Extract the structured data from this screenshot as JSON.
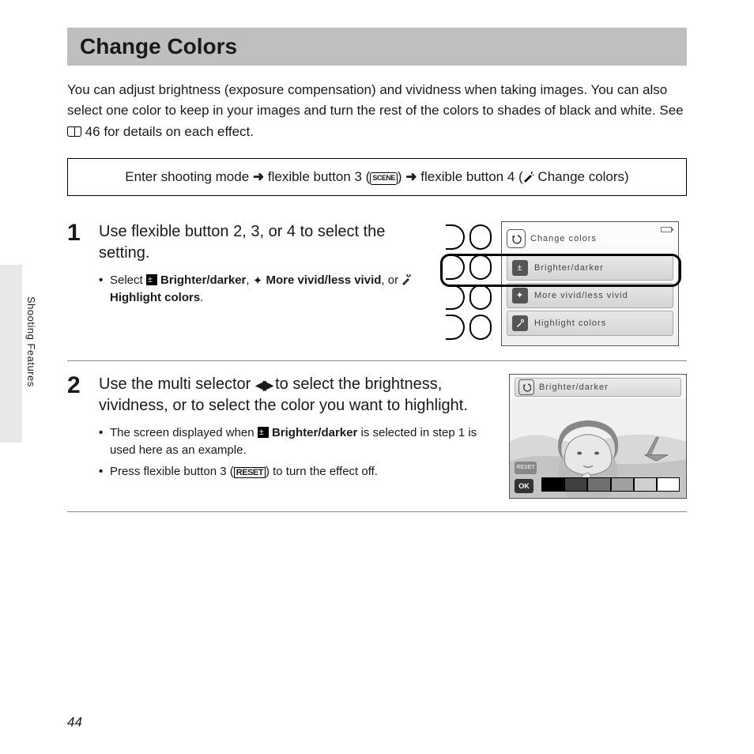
{
  "page_number": "44",
  "side_label": "Shooting Features",
  "title": "Change Colors",
  "intro_before_ref": "You can adjust brightness (exposure compensation) and vividness when taking images. You can also select one color to keep in your images and turn the rest of the colors to shades of black and white. See ",
  "intro_ref": " 46",
  "intro_after_ref": " for details on each effect.",
  "breadcrumb": {
    "p1": "Enter shooting mode ",
    "p2": " flexible button 3 (",
    "scene_label": "SCENE",
    "p3": ") ",
    "p4": " flexible button 4 (",
    "p5": " Change colors)"
  },
  "step1": {
    "num": "1",
    "title": "Use flexible button 2, 3, or 4 to select the setting.",
    "bullet_lead": "Select ",
    "opt1": " Brighter/darker",
    "sep1": ", ",
    "opt2": " More vivid/less vivid",
    "sep2": ", or ",
    "opt3": " Highlight colors",
    "tail": "."
  },
  "step2": {
    "num": "2",
    "title_a": "Use the multi selector ",
    "title_b": " to select the brightness, vividness, or to select the color you want to highlight.",
    "bullet1_a": "The screen displayed when ",
    "bullet1_b": " Brighter/darker",
    "bullet1_c": " is selected in step 1 is used here as an example.",
    "bullet2_a": "Press flexible button 3 (",
    "bullet2_reset": "RESET",
    "bullet2_b": ") to turn the effect off."
  },
  "screen1": {
    "header": "Change colors",
    "row1": "Brighter/darker",
    "row2": "More vivid/less vivid",
    "row3": "Highlight colors"
  },
  "screen2": {
    "header": "Brighter/darker",
    "ok": "OK",
    "reset": "RESET",
    "slider_colors": [
      "#000000",
      "#404040",
      "#707070",
      "#a0a0a0",
      "#d0d0d0",
      "#ffffff"
    ]
  },
  "colors": {
    "title_bg": "#bfbfbf",
    "text": "#1a1a1a"
  }
}
